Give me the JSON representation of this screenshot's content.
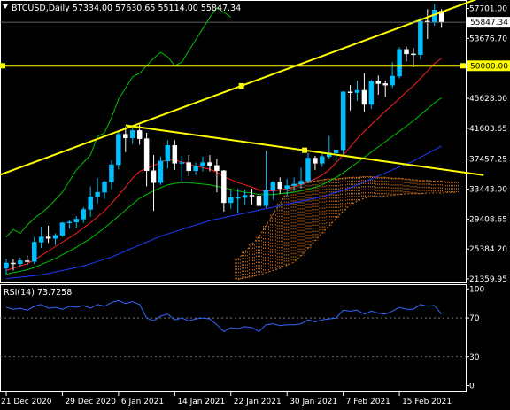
{
  "window": {
    "symbol_line": "BTCUSD,Daily  57334.00 57630.65 55114.00 55847.34"
  },
  "colors": {
    "bull": "#00bfff",
    "bear": "#ffffff",
    "trendline": "#ffff00",
    "ma_fast": "#00c000",
    "ma_mid": "#ff2020",
    "ma_slow": "#1a3cff",
    "ichimoku_cloud": "#e07a22",
    "rsi": "#3366ff",
    "price_tag_bg": "#ffffff",
    "hline_tag_bg": "#ffff00"
  },
  "chart_data": [
    {
      "type": "candlestick",
      "y_scale": "linear",
      "ylim": [
        21000,
        58600
      ],
      "yticks": [
        "57701.00",
        "53676.70",
        "45628.00",
        "41603.65",
        "37457.25",
        "33443.00",
        "29408.65",
        "25384.20",
        "21359.95"
      ],
      "ytick_values": [
        57701.0,
        53676.7,
        45628.0,
        41603.65,
        37457.25,
        33443.0,
        29408.65,
        25384.2,
        21359.95
      ],
      "xticks": [
        "21 Dec 2020",
        "29 Dec 2020",
        "6 Jan 2021",
        "14 Jan 2021",
        "22 Jan 2021",
        "30 Jan 2021",
        "7 Feb 2021",
        "15 Feb 2021"
      ],
      "xtick_bar_index": [
        0,
        8,
        16,
        24,
        32,
        40,
        48,
        56
      ],
      "last_price_label": "55847.34",
      "last_price": 55847.34,
      "hline_label": "50000.00",
      "hline_value": 50000.0,
      "candles": [
        [
          22800,
          24100,
          22000,
          23500
        ],
        [
          23500,
          24000,
          22500,
          23400
        ],
        [
          23400,
          24200,
          23000,
          23800
        ],
        [
          23800,
          24500,
          23200,
          23700
        ],
        [
          23700,
          27000,
          23400,
          26300
        ],
        [
          26300,
          28400,
          25500,
          27000
        ],
        [
          27000,
          28500,
          26200,
          26800
        ],
        [
          26800,
          27500,
          25900,
          27200
        ],
        [
          27200,
          29000,
          27000,
          28900
        ],
        [
          28900,
          29300,
          28100,
          29000
        ],
        [
          29000,
          29800,
          28200,
          29400
        ],
        [
          29400,
          31000,
          28900,
          30700
        ],
        [
          30700,
          33800,
          29700,
          32400
        ],
        [
          32400,
          34900,
          31500,
          33000
        ],
        [
          33000,
          34600,
          32100,
          34400
        ],
        [
          34400,
          37300,
          33400,
          36700
        ],
        [
          36700,
          41200,
          36100,
          40800
        ],
        [
          40800,
          41800,
          38400,
          40300
        ],
        [
          40300,
          41900,
          39500,
          41300
        ],
        [
          41300,
          42100,
          39400,
          40200
        ],
        [
          40200,
          41000,
          33800,
          35900
        ],
        [
          35900,
          38000,
          30500,
          34300
        ],
        [
          34300,
          37800,
          34000,
          37200
        ],
        [
          37200,
          40000,
          36200,
          39300
        ],
        [
          39300,
          40000,
          36000,
          36900
        ],
        [
          36900,
          37900,
          34500,
          37000
        ],
        [
          37000,
          38000,
          35200,
          35900
        ],
        [
          35900,
          37000,
          35300,
          36500
        ],
        [
          36500,
          37800,
          35800,
          37000
        ],
        [
          37000,
          38000,
          35800,
          36600
        ],
        [
          36600,
          37500,
          33000,
          35900
        ],
        [
          35900,
          36000,
          30400,
          31600
        ],
        [
          31600,
          33300,
          30800,
          32300
        ],
        [
          32300,
          33500,
          30200,
          32300
        ],
        [
          32300,
          33400,
          31300,
          32600
        ],
        [
          32600,
          33500,
          31300,
          32500
        ],
        [
          32500,
          33000,
          29000,
          31200
        ],
        [
          31200,
          38600,
          30900,
          33300
        ],
        [
          33300,
          34500,
          32000,
          34400
        ],
        [
          34400,
          35000,
          32800,
          33500
        ],
        [
          33500,
          34800,
          32500,
          33900
        ],
        [
          33900,
          35000,
          33200,
          34100
        ],
        [
          34100,
          36300,
          33500,
          34500
        ],
        [
          34500,
          38300,
          34200,
          37600
        ],
        [
          37600,
          37900,
          36000,
          36900
        ],
        [
          36900,
          38300,
          36400,
          37800
        ],
        [
          37800,
          40600,
          37500,
          38300
        ],
        [
          38300,
          38600,
          37200,
          38700
        ],
        [
          38700,
          46600,
          38100,
          46500
        ],
        [
          46500,
          47400,
          44000,
          46400
        ],
        [
          46400,
          48000,
          45300,
          46700
        ],
        [
          46700,
          49000,
          43800,
          44800
        ],
        [
          44800,
          48100,
          44200,
          47900
        ],
        [
          47900,
          48700,
          46100,
          47600
        ],
        [
          47600,
          48000,
          45800,
          47400
        ],
        [
          47400,
          50500,
          47000,
          48600
        ],
        [
          48600,
          52500,
          48300,
          52200
        ],
        [
          52200,
          52600,
          50600,
          51600
        ],
        [
          51600,
          52400,
          49800,
          51500
        ],
        [
          51500,
          56500,
          50900,
          56000
        ],
        [
          56000,
          57600,
          53600,
          55900
        ],
        [
          55900,
          58300,
          55400,
          57500
        ],
        [
          57334,
          57630.65,
          55114,
          55847.34
        ]
      ],
      "series": [
        {
          "kind": "moving_average",
          "values": [
            22500,
            22800,
            23100,
            23400,
            23900,
            24500,
            25100,
            25700,
            26300,
            26900,
            27500,
            28200,
            28900,
            29700,
            30500,
            31500,
            32600,
            33700,
            34900,
            35800,
            36200,
            36600,
            37000,
            37400,
            37300,
            37100,
            36800,
            36500,
            36300,
            36100,
            35700,
            35100,
            34700,
            34300,
            34000,
            33700,
            33300,
            33200,
            33200,
            33300,
            33500,
            33700,
            34000,
            34400,
            34800,
            35300,
            36000,
            37000,
            38000,
            39100,
            40200,
            41200,
            42100,
            43000,
            43900,
            44700,
            45600,
            46500,
            47300,
            48300,
            49300,
            50300,
            51000
          ]
        },
        {
          "kind": "moving_average",
          "values": [
            22000,
            22200,
            22400,
            22600,
            22900,
            23300,
            23700,
            24100,
            24600,
            25100,
            25600,
            26200,
            26800,
            27500,
            28200,
            29000,
            29800,
            30600,
            31400,
            32200,
            32700,
            33200,
            33600,
            34000,
            34200,
            34300,
            34300,
            34200,
            34100,
            34000,
            33800,
            33600,
            33400,
            33200,
            33000,
            32900,
            32700,
            32700,
            32700,
            32800,
            32900,
            33000,
            33200,
            33400,
            33700,
            34000,
            34500,
            35000,
            35600,
            36300,
            37000,
            37700,
            38400,
            39100,
            39800,
            40500,
            41200,
            41900,
            42600,
            43400,
            44200,
            45000,
            45700
          ]
        },
        {
          "kind": "moving_average",
          "values": [
            21400,
            21500,
            21600,
            21700,
            21800,
            21900,
            22100,
            22300,
            22500,
            22700,
            22900,
            23100,
            23400,
            23700,
            24000,
            24300,
            24700,
            25100,
            25500,
            25900,
            26300,
            26700,
            27100,
            27400,
            27700,
            28000,
            28300,
            28600,
            28900,
            29200,
            29400,
            29600,
            29800,
            30000,
            30200,
            30400,
            30600,
            30800,
            31000,
            31200,
            31400,
            31600,
            31800,
            32000,
            32200,
            32400,
            32700,
            33000,
            33300,
            33600,
            34000,
            34400,
            34800,
            35200,
            35600,
            36000,
            36400,
            36800,
            37200,
            37700,
            38200,
            38700,
            39200
          ]
        },
        {
          "kind": "lagging_line",
          "start_bar": 0,
          "values": [
            27000,
            28000,
            27500,
            28600,
            29500,
            30200,
            31000,
            32000,
            33000,
            34500,
            36000,
            37000,
            38000,
            40500,
            41000,
            43000,
            45500,
            47000,
            48500,
            49000,
            50000,
            51000,
            51800,
            51200,
            50000,
            50500,
            52000,
            53500,
            55000,
            56500,
            57800,
            57200,
            56500
          ]
        },
        {
          "kind": "cloud_span_a",
          "start_bar": 33,
          "values": [
            24000,
            25000,
            26000,
            27000,
            28500,
            30000,
            31500,
            33000,
            34000,
            34200,
            34400,
            34500,
            34700,
            34800,
            34800,
            34900,
            35000,
            35000,
            35100,
            35100,
            35000,
            35000,
            34900,
            34900,
            34800,
            34700,
            34600,
            34600,
            34500,
            34500,
            34400,
            34400
          ]
        },
        {
          "kind": "cloud_span_b",
          "start_bar": 33,
          "values": [
            21300,
            21500,
            21700,
            21900,
            22200,
            22500,
            22800,
            23200,
            23600,
            24500,
            25500,
            26500,
            27500,
            28500,
            29500,
            30500,
            31300,
            31800,
            32200,
            32400,
            32500,
            32500,
            32600,
            32700,
            32800,
            32800,
            32800,
            32900,
            32900,
            32900,
            33000,
            33000
          ]
        }
      ],
      "lines": [
        {
          "kind": "trendline",
          "from": [
            -1,
            35300
          ],
          "to": [
            68,
            59300
          ]
        },
        {
          "kind": "trendline",
          "from": [
            17,
            42000
          ],
          "to": [
            68,
            35300
          ]
        },
        {
          "kind": "horizontal",
          "value": 50000
        }
      ]
    },
    {
      "type": "line",
      "title": "RSI(14) 73.7258",
      "ylim": [
        -5,
        103
      ],
      "yticks": [
        "100",
        "70",
        "30",
        "0"
      ],
      "ytick_values": [
        100,
        70,
        30,
        0
      ],
      "levels": [
        70,
        30
      ],
      "values": [
        81,
        79,
        80,
        78,
        82,
        84,
        80,
        81,
        79,
        82,
        81,
        83,
        80,
        84,
        82,
        86,
        88,
        85,
        87,
        84,
        70,
        67,
        72,
        74,
        68,
        70,
        67,
        69,
        70,
        69,
        63,
        56,
        60,
        59,
        61,
        60,
        56,
        63,
        64,
        62,
        63,
        63,
        64,
        68,
        66,
        68,
        69,
        70,
        78,
        77,
        78,
        74,
        77,
        75,
        74,
        77,
        81,
        79,
        79,
        84,
        82,
        83,
        73.7258
      ]
    }
  ]
}
